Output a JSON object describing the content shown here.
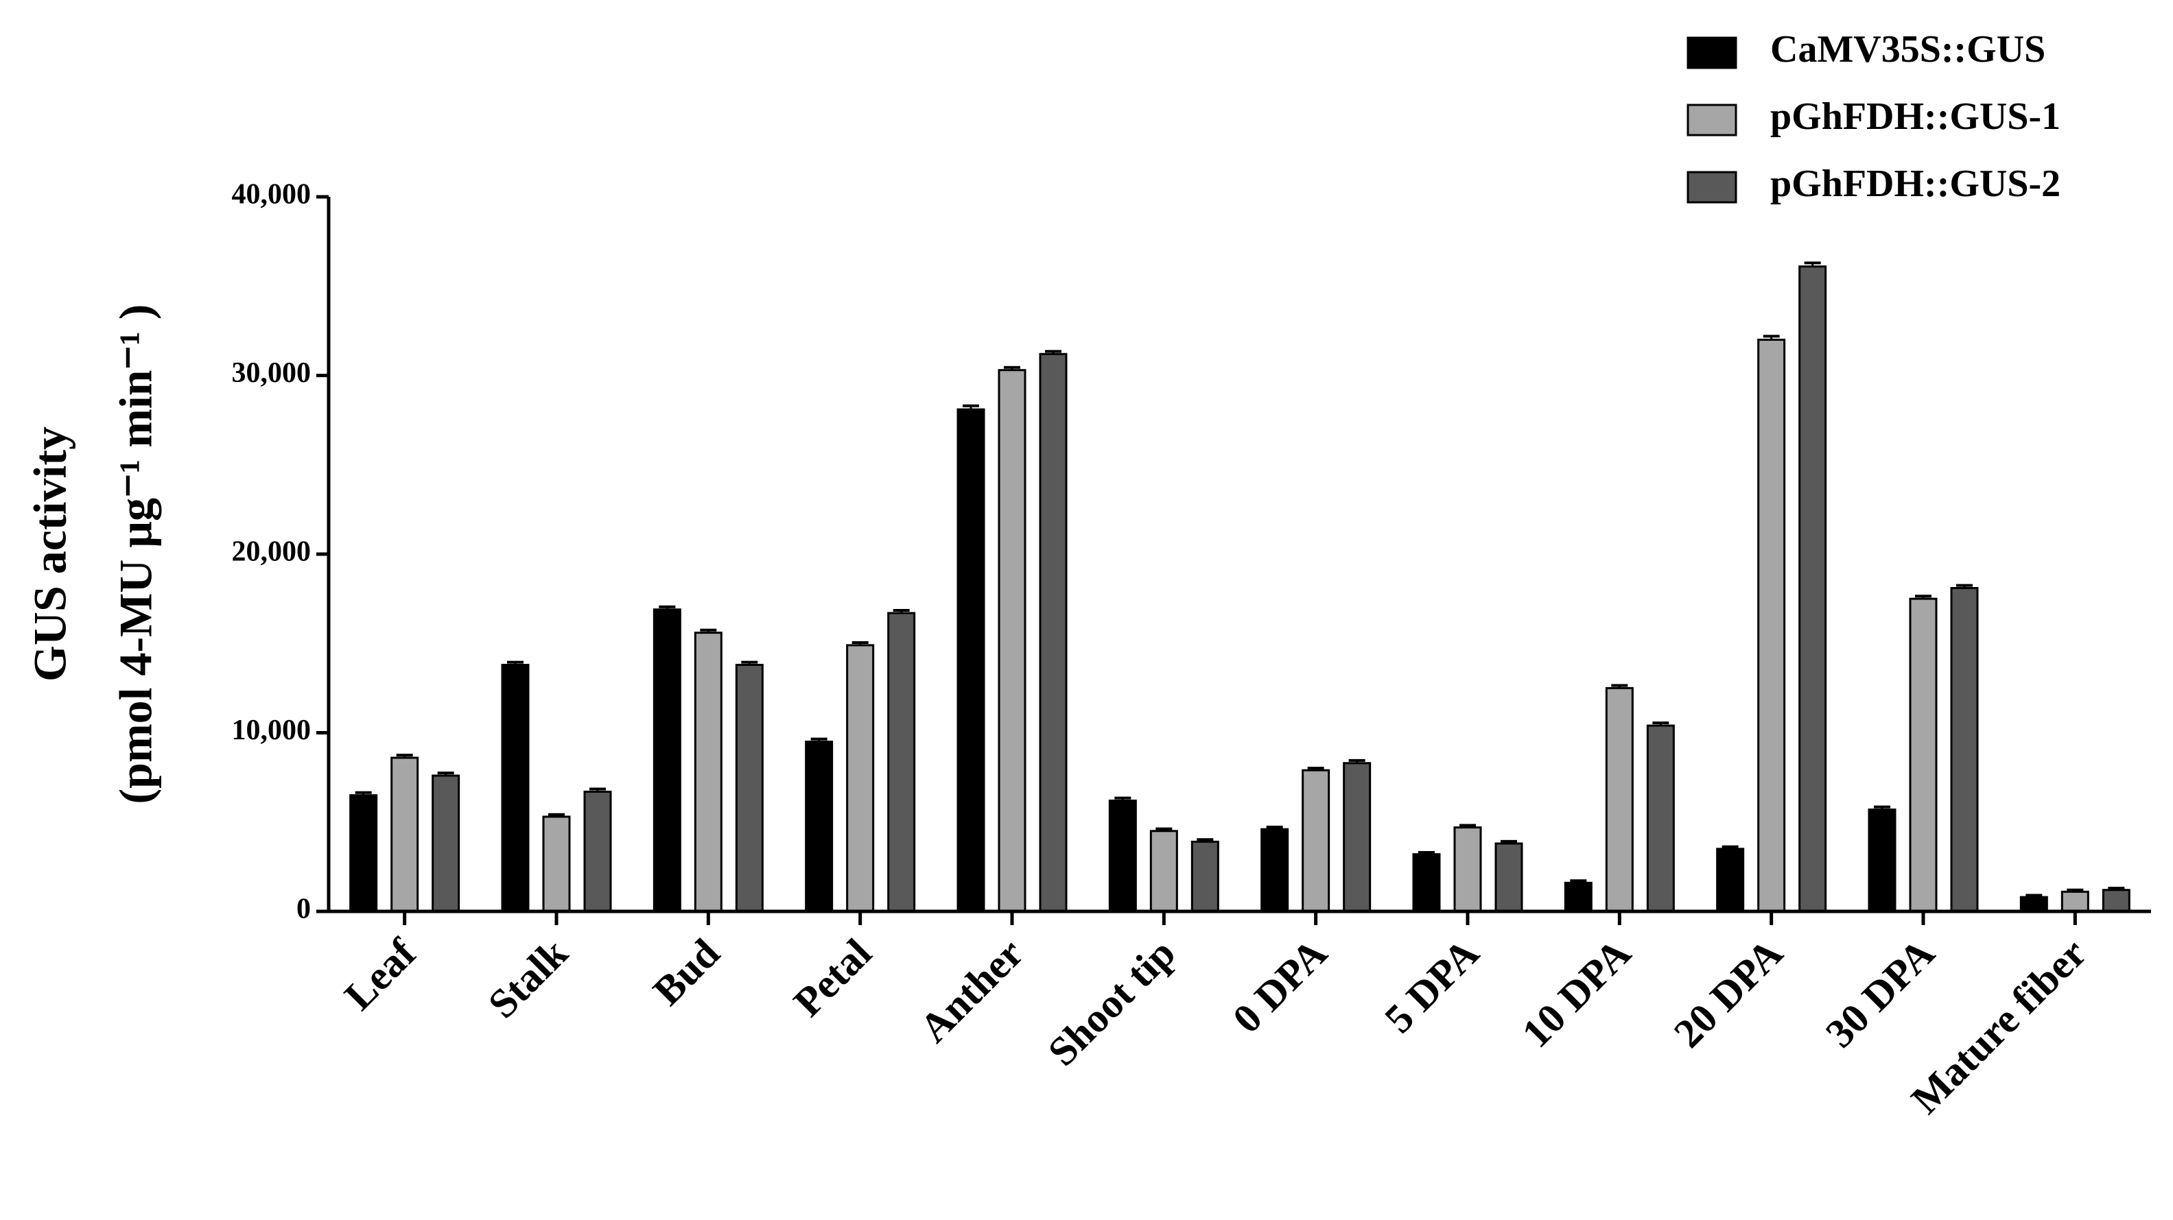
{
  "chart_data": {
    "type": "bar",
    "ylabel": [
      "GUS activity",
      "(pmol 4-MU μg⁻¹ min⁻¹ )"
    ],
    "categories": [
      "Leaf",
      "Stalk",
      "Bud",
      "Petal",
      "Anther",
      "Shoot tip",
      "0 DPA",
      "5 DPA",
      "10 DPA",
      "20 DPA",
      "30 DPA",
      "Mature fiber"
    ],
    "series": [
      {
        "name": "CaMV35S::GUS",
        "color": "#000000",
        "values": [
          6500,
          13800,
          16900,
          9500,
          28100,
          6200,
          4600,
          3200,
          1600,
          3500,
          5700,
          800
        ],
        "errors": [
          150,
          150,
          150,
          150,
          200,
          150,
          120,
          100,
          120,
          120,
          150,
          100
        ]
      },
      {
        "name": "pGhFDH::GUS-1",
        "color": "#a6a6a6",
        "values": [
          8600,
          5300,
          15600,
          14900,
          30300,
          4500,
          7900,
          4700,
          12500,
          32000,
          17500,
          1100
        ],
        "errors": [
          150,
          120,
          150,
          150,
          150,
          120,
          120,
          120,
          150,
          200,
          150,
          100
        ]
      },
      {
        "name": "pGhFDH::GUS-2",
        "color": "#595959",
        "values": [
          7600,
          6700,
          13800,
          16700,
          31200,
          3900,
          8300,
          3800,
          10400,
          36100,
          18100,
          1200
        ],
        "errors": [
          150,
          150,
          150,
          150,
          150,
          120,
          150,
          120,
          150,
          200,
          150,
          100
        ]
      }
    ],
    "ylim": [
      0,
      40000
    ],
    "yticks": [
      0,
      {
        "value": 10000,
        "label": "10,000"
      },
      {
        "value": 20000,
        "label": "20,000"
      },
      {
        "value": 30000,
        "label": "30,000"
      },
      {
        "value": 40000,
        "label": "40,000"
      }
    ],
    "legend": "upper right"
  }
}
